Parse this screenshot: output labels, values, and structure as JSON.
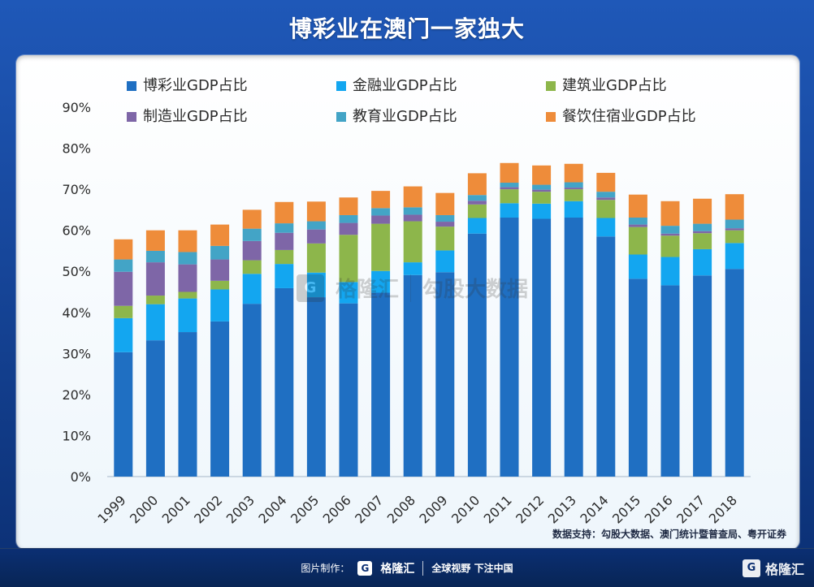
{
  "header": {
    "title": "博彩业在澳门一家独大"
  },
  "chart_data": {
    "type": "bar",
    "stacked": true,
    "categories": [
      "1999",
      "2000",
      "2001",
      "2002",
      "2003",
      "2004",
      "2005",
      "2006",
      "2007",
      "2008",
      "2009",
      "2010",
      "2011",
      "2012",
      "2013",
      "2014",
      "2015",
      "2016",
      "2017",
      "2018"
    ],
    "ylim": [
      0,
      90
    ],
    "yticks": [
      0,
      10,
      20,
      30,
      40,
      50,
      60,
      70,
      80,
      90
    ],
    "ytick_labels": [
      "0%",
      "10%",
      "20%",
      "30%",
      "40%",
      "50%",
      "60%",
      "70%",
      "80%",
      "90%"
    ],
    "legend": [
      {
        "name": "博彩业GDP占比",
        "color": "#1f6fc2"
      },
      {
        "name": "金融业GDP占比",
        "color": "#13a6f0"
      },
      {
        "name": "建筑业GDP占比",
        "color": "#8db64b"
      },
      {
        "name": "制造业GDP占比",
        "color": "#7e66a7"
      },
      {
        "name": "教育业GDP占比",
        "color": "#43a4c6"
      },
      {
        "name": "餐饮住宿业GDP占比",
        "color": "#ee8c3a"
      }
    ],
    "series": [
      {
        "name": "博彩业GDP占比",
        "color": "#1f6fc2",
        "values": [
          30.3,
          33.2,
          35.2,
          37.8,
          42.1,
          45.9,
          43.7,
          42.2,
          44.8,
          49.1,
          49.8,
          59.2,
          63.1,
          62.8,
          63.1,
          58.5,
          48.2,
          46.6,
          49.0,
          50.6
        ]
      },
      {
        "name": "金融业GDP占比",
        "color": "#13a6f0",
        "values": [
          8.3,
          8.8,
          8.2,
          7.8,
          7.3,
          5.9,
          6.0,
          5.2,
          5.3,
          3.1,
          5.3,
          3.8,
          3.5,
          3.7,
          4.0,
          4.5,
          5.9,
          6.9,
          6.4,
          6.3
        ]
      },
      {
        "name": "建筑业GDP占比",
        "color": "#8db64b",
        "values": [
          3.0,
          2.1,
          1.6,
          2.1,
          3.3,
          3.4,
          7.1,
          11.5,
          11.5,
          10.0,
          5.8,
          3.3,
          3.4,
          2.9,
          2.9,
          4.4,
          6.7,
          5.2,
          3.9,
          3.1
        ]
      },
      {
        "name": "制造业GDP占比",
        "color": "#7e66a7",
        "values": [
          8.3,
          8.1,
          6.7,
          5.2,
          4.7,
          4.2,
          3.4,
          2.9,
          2.0,
          1.6,
          1.2,
          0.9,
          0.5,
          0.5,
          0.4,
          0.6,
          0.6,
          0.5,
          0.5,
          0.5
        ]
      },
      {
        "name": "教育业GDP占比",
        "color": "#43a4c6",
        "values": [
          3.0,
          2.8,
          3.0,
          3.3,
          3.0,
          2.3,
          2.0,
          1.9,
          1.8,
          1.8,
          1.6,
          1.4,
          1.1,
          1.2,
          1.3,
          1.4,
          1.7,
          1.9,
          1.8,
          2.1
        ]
      },
      {
        "name": "餐饮住宿业GDP占比",
        "color": "#ee8c3a",
        "values": [
          4.9,
          5.0,
          5.3,
          5.2,
          4.6,
          5.2,
          4.8,
          4.3,
          4.2,
          5.1,
          5.4,
          5.3,
          4.8,
          4.7,
          4.5,
          4.6,
          5.6,
          6.0,
          6.1,
          6.2
        ]
      }
    ]
  },
  "source": {
    "text": "数据支持：勾股大数据、澳门统计暨普查局、粤开证券"
  },
  "watermark": {
    "logo_glyph": "G",
    "name1": "格隆汇",
    "name2": "勾股大数据"
  },
  "footer": {
    "made_by_label": "图片制作：",
    "logo_glyph": "G",
    "brand_name": "格隆汇",
    "slogan": "全球视野 下注中国",
    "right_logo_glyph": "G",
    "right_brand_name": "格隆汇"
  }
}
